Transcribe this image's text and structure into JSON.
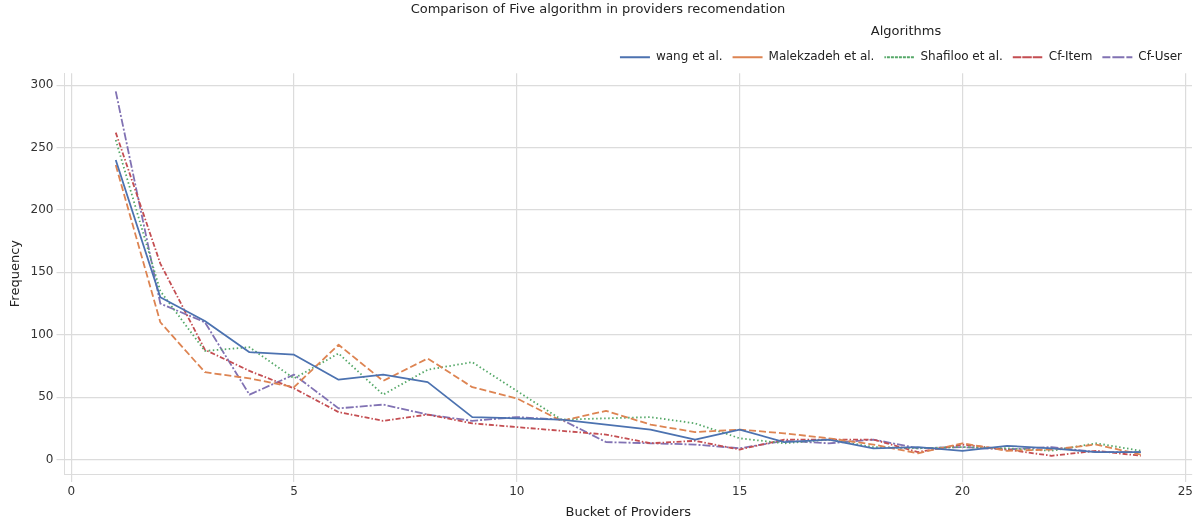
{
  "chart_data": {
    "type": "line",
    "title": "Comparison of Five algorithm in providers recomendation",
    "xlabel": "Bucket of Providers",
    "ylabel": "Frequency",
    "legend_title": "Algorithms",
    "legend": "top right",
    "grid": true,
    "marker": "none",
    "x": [
      1,
      2,
      3,
      4,
      5,
      6,
      7,
      8,
      9,
      10,
      11,
      12,
      13,
      14,
      15,
      16,
      17,
      18,
      19,
      20,
      21,
      22,
      23,
      24
    ],
    "xlim": [
      -0.15,
      25.15
    ],
    "xticks": [
      0,
      5,
      10,
      15,
      20,
      25
    ],
    "ylim": [
      -11.6,
      309.6
    ],
    "yticks": [
      0,
      50,
      100,
      150,
      200,
      250,
      300
    ],
    "series": [
      {
        "name": "wang et al.",
        "color": "#4c72b0",
        "line_style": "solid",
        "values": [
          240,
          130,
          111,
          86,
          84,
          64,
          68,
          62,
          34,
          33,
          32,
          28,
          24,
          16,
          24,
          14,
          16,
          9,
          10,
          7,
          11,
          9,
          6,
          6
        ]
      },
      {
        "name": "Malekzadeh et al.",
        "color": "#dd8452",
        "line_style": "dashed",
        "values": [
          236,
          110,
          70,
          65,
          58,
          92,
          63,
          81,
          58,
          49,
          31,
          39,
          28,
          22,
          24,
          21,
          17,
          12,
          5,
          13,
          7,
          8,
          12,
          4
        ]
      },
      {
        "name": "Shafiloo et al.",
        "color": "#55a868",
        "line_style": "dotted",
        "values": [
          256,
          135,
          87,
          90,
          65,
          85,
          52,
          72,
          78,
          55,
          32,
          33,
          34,
          29,
          17,
          13,
          16,
          10,
          9,
          10,
          9,
          7,
          13,
          7
        ]
      },
      {
        "name": "Cf-Item",
        "color": "#c44e52",
        "line_style": "dashdotdot",
        "values": [
          262,
          157,
          88,
          71,
          57,
          38,
          31,
          36,
          29,
          26,
          23,
          20,
          13,
          15,
          8,
          16,
          16,
          16,
          6,
          12,
          8,
          3,
          7,
          3
        ]
      },
      {
        "name": "Cf-User",
        "color": "#8172b3",
        "line_style": "dashdot",
        "values": [
          295,
          125,
          110,
          52,
          68,
          41,
          44,
          36,
          31,
          34,
          32,
          14,
          13,
          12,
          9,
          15,
          13,
          16,
          9,
          10,
          8,
          10,
          6,
          6
        ]
      }
    ]
  }
}
